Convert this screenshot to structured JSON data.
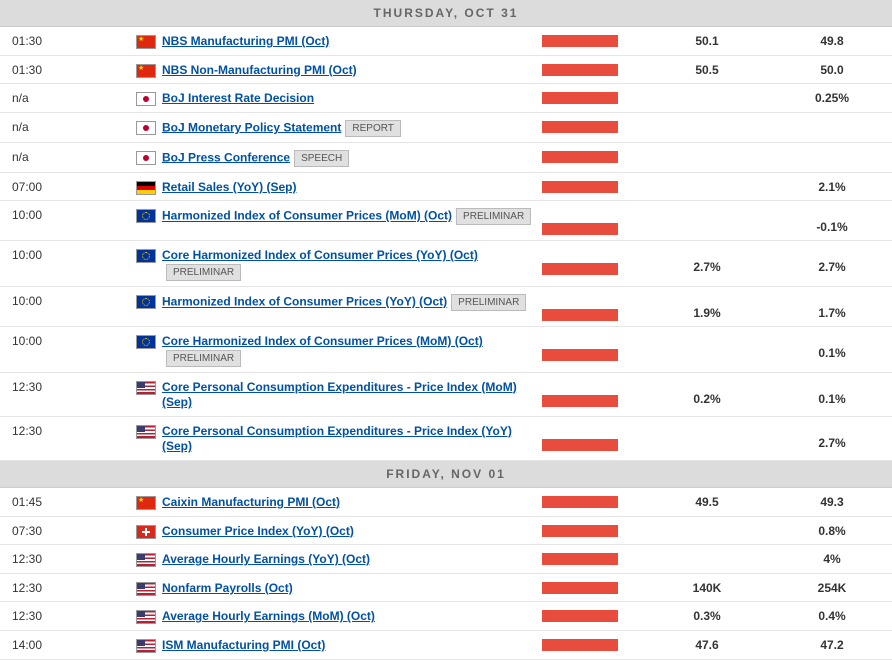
{
  "impact_color": "#e74c3c",
  "link_color": "#0051a3",
  "header_bg": "#dcdcdc",
  "days": [
    {
      "label": "THURSDAY, OCT 31",
      "rows": [
        {
          "time": "01:30",
          "flag": "cn",
          "event": "NBS Manufacturing PMI (Oct)",
          "badge": "",
          "forecast": "50.1",
          "previous": "49.8",
          "tall": false
        },
        {
          "time": "01:30",
          "flag": "cn",
          "event": "NBS Non-Manufacturing PMI (Oct)",
          "badge": "",
          "forecast": "50.5",
          "previous": "50.0",
          "tall": false
        },
        {
          "time": "n/a",
          "flag": "jp",
          "event": "BoJ Interest Rate Decision",
          "badge": "",
          "forecast": "",
          "previous": "0.25%",
          "tall": false
        },
        {
          "time": "n/a",
          "flag": "jp",
          "event": "BoJ Monetary Policy Statement",
          "badge": "REPORT",
          "forecast": "",
          "previous": "",
          "tall": false
        },
        {
          "time": "n/a",
          "flag": "jp",
          "event": "BoJ Press Conference",
          "badge": "SPEECH",
          "forecast": "",
          "previous": "",
          "tall": false
        },
        {
          "time": "07:00",
          "flag": "de",
          "event": "Retail Sales (YoY) (Sep)",
          "badge": "",
          "forecast": "",
          "previous": "2.1%",
          "tall": false
        },
        {
          "time": "10:00",
          "flag": "eu",
          "event": "Harmonized Index of Consumer Prices (MoM) (Oct)",
          "badge": "PRELIMINAR",
          "forecast": "",
          "previous": "-0.1%",
          "tall": true
        },
        {
          "time": "10:00",
          "flag": "eu",
          "event": "Core Harmonized Index of Consumer Prices (YoY) (Oct)",
          "badge": "PRELIMINAR",
          "forecast": "2.7%",
          "previous": "2.7%",
          "tall": true
        },
        {
          "time": "10:00",
          "flag": "eu",
          "event": "Harmonized Index of Consumer Prices (YoY) (Oct)",
          "badge": "PRELIMINAR",
          "forecast": "1.9%",
          "previous": "1.7%",
          "tall": true
        },
        {
          "time": "10:00",
          "flag": "eu",
          "event": "Core Harmonized Index of Consumer Prices (MoM) (Oct)",
          "badge": "PRELIMINAR",
          "forecast": "",
          "previous": "0.1%",
          "tall": true
        },
        {
          "time": "12:30",
          "flag": "us",
          "event": "Core Personal Consumption Expenditures - Price Index (MoM) (Sep)",
          "badge": "",
          "forecast": "0.2%",
          "previous": "0.1%",
          "tall": true
        },
        {
          "time": "12:30",
          "flag": "us",
          "event": "Core Personal Consumption Expenditures - Price Index (YoY) (Sep)",
          "badge": "",
          "forecast": "",
          "previous": "2.7%",
          "tall": true
        }
      ]
    },
    {
      "label": "FRIDAY, NOV 01",
      "rows": [
        {
          "time": "01:45",
          "flag": "cn",
          "event": "Caixin Manufacturing PMI (Oct)",
          "badge": "",
          "forecast": "49.5",
          "previous": "49.3",
          "tall": false
        },
        {
          "time": "07:30",
          "flag": "ch",
          "event": "Consumer Price Index (YoY) (Oct)",
          "badge": "",
          "forecast": "",
          "previous": "0.8%",
          "tall": false
        },
        {
          "time": "12:30",
          "flag": "us",
          "event": "Average Hourly Earnings (YoY) (Oct)",
          "badge": "",
          "forecast": "",
          "previous": "4%",
          "tall": false
        },
        {
          "time": "12:30",
          "flag": "us",
          "event": "Nonfarm Payrolls (Oct)",
          "badge": "",
          "forecast": "140K",
          "previous": "254K",
          "tall": false
        },
        {
          "time": "12:30",
          "flag": "us",
          "event": "Average Hourly Earnings (MoM) (Oct)",
          "badge": "",
          "forecast": "0.3%",
          "previous": "0.4%",
          "tall": false
        },
        {
          "time": "14:00",
          "flag": "us",
          "event": "ISM Manufacturing PMI (Oct)",
          "badge": "",
          "forecast": "47.6",
          "previous": "47.2",
          "tall": false
        }
      ]
    }
  ]
}
